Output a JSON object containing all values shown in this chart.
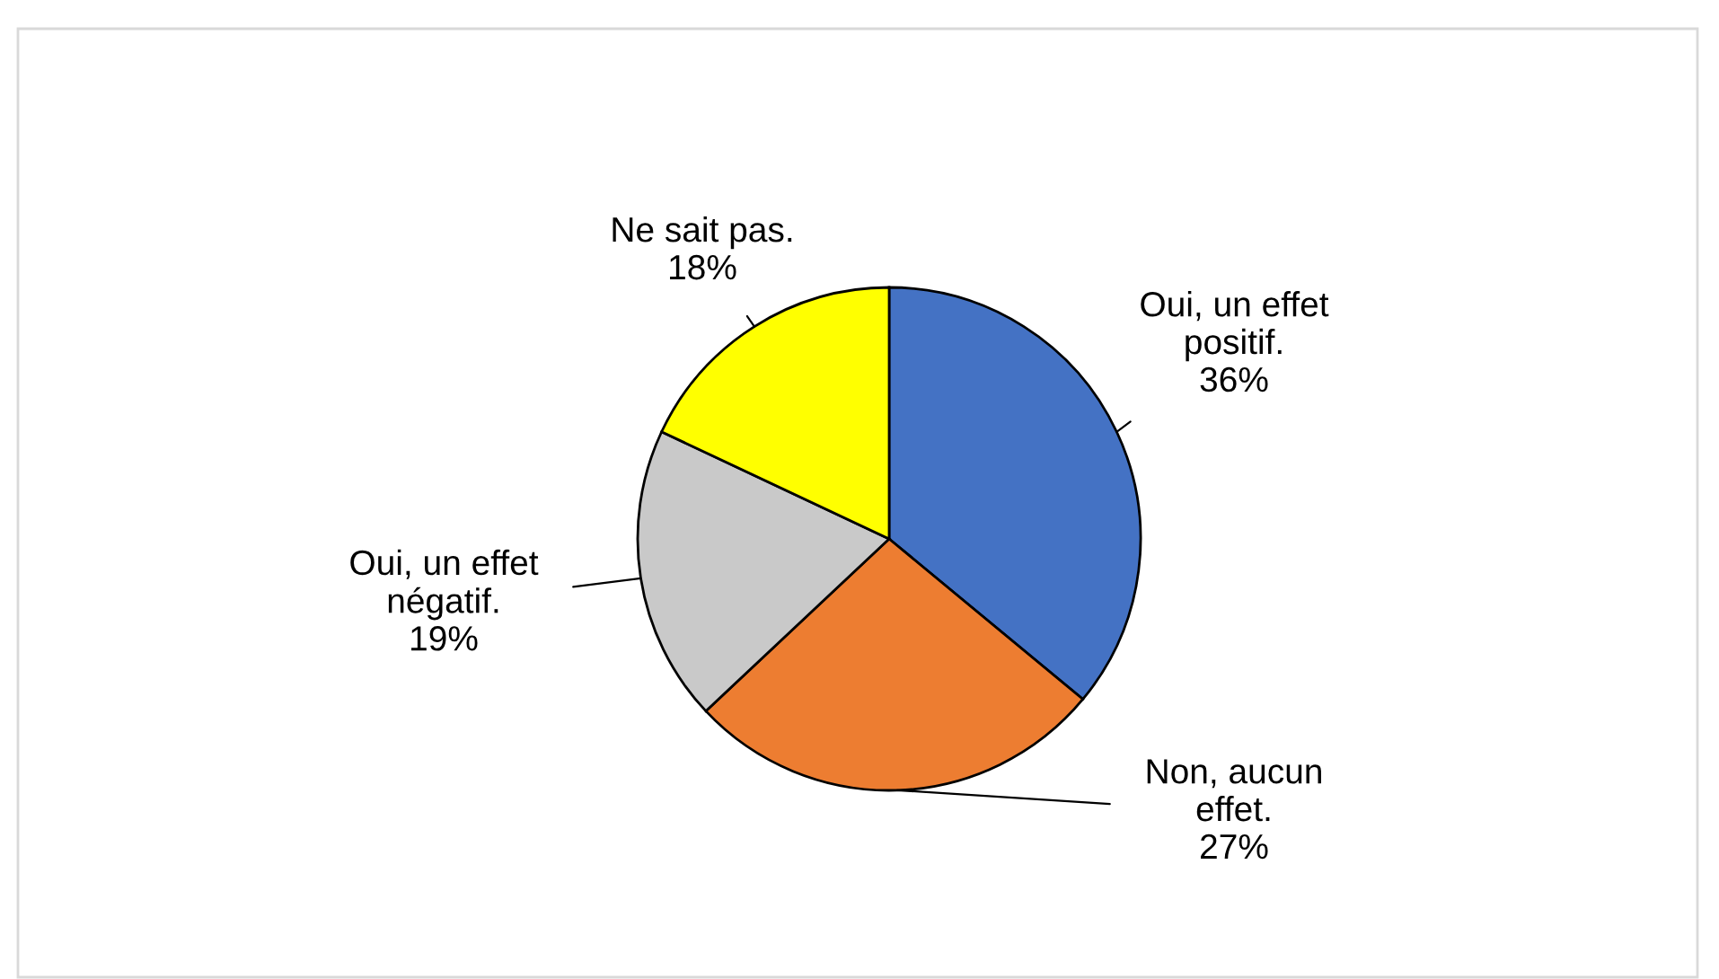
{
  "chart_data": {
    "type": "pie",
    "categories": [
      "Oui, un effet\npositif.",
      "Non, aucun\neffet.",
      "Oui, un effet\nnégatif.",
      "Ne sait pas."
    ],
    "values": [
      36,
      27,
      19,
      18
    ],
    "colors": [
      "#4472c4",
      "#ed7d31",
      "#c9c9c9",
      "#ffff00"
    ],
    "value_labels": [
      "36%",
      "27%",
      "19%",
      "18%"
    ],
    "legend": false
  }
}
